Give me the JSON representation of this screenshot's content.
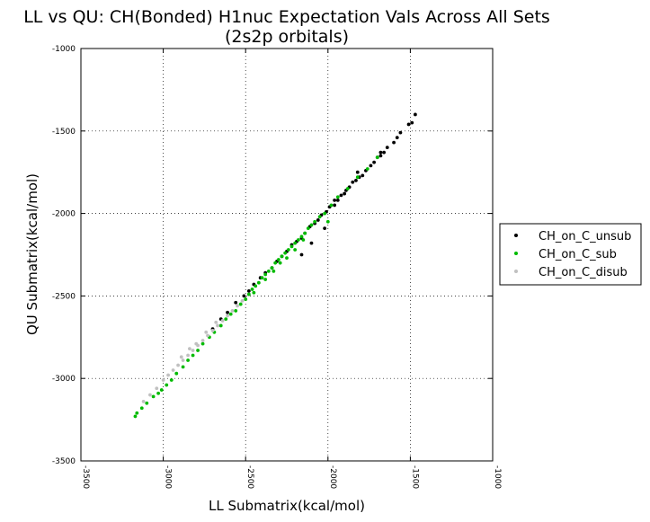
{
  "chart_data": {
    "type": "scatter",
    "title": "LL vs QU: CH(Bonded) H1nuc Expectation Vals Across All Sets",
    "subtitle": "(2s2p orbitals)",
    "xlabel": "LL Submatrix(kcal/mol)",
    "ylabel": "QU Submatrix(kcal/mol)",
    "xlim": [
      -3500,
      -1000
    ],
    "ylim": [
      -3500,
      -1000
    ],
    "x_ticks": [
      "-3500",
      "-3000",
      "-2500",
      "-2000",
      "-1500",
      "-1000"
    ],
    "y_ticks": [
      "-3500",
      "-3000",
      "-2500",
      "-2000",
      "-1500",
      "-1000"
    ],
    "grid": true,
    "legend_position": "outside-right",
    "series": [
      {
        "name": "CH_on_C_unsub",
        "color": "#000000",
        "points": [
          [
            -1470,
            -1400
          ],
          [
            -1490,
            -1450
          ],
          [
            -1510,
            -1460
          ],
          [
            -1560,
            -1510
          ],
          [
            -1580,
            -1540
          ],
          [
            -1600,
            -1570
          ],
          [
            -1640,
            -1600
          ],
          [
            -1660,
            -1630
          ],
          [
            -1680,
            -1650
          ],
          [
            -1700,
            -1660
          ],
          [
            -1720,
            -1690
          ],
          [
            -1740,
            -1710
          ],
          [
            -1770,
            -1740
          ],
          [
            -1790,
            -1770
          ],
          [
            -1810,
            -1780
          ],
          [
            -1830,
            -1800
          ],
          [
            -1850,
            -1810
          ],
          [
            -1870,
            -1840
          ],
          [
            -1890,
            -1860
          ],
          [
            -1900,
            -1880
          ],
          [
            -1920,
            -1890
          ],
          [
            -1940,
            -1920
          ],
          [
            -1960,
            -1950
          ],
          [
            -1990,
            -1960
          ],
          [
            -2010,
            -1990
          ],
          [
            -2040,
            -2010
          ],
          [
            -2060,
            -2040
          ],
          [
            -2080,
            -2060
          ],
          [
            -2110,
            -2080
          ],
          [
            -2140,
            -2120
          ],
          [
            -2160,
            -2150
          ],
          [
            -2190,
            -2170
          ],
          [
            -2220,
            -2190
          ],
          [
            -2250,
            -2230
          ],
          [
            -2280,
            -2260
          ],
          [
            -2310,
            -2290
          ],
          [
            -2340,
            -2330
          ],
          [
            -2380,
            -2360
          ],
          [
            -2410,
            -2390
          ],
          [
            -2450,
            -2430
          ],
          [
            -2480,
            -2470
          ],
          [
            -2510,
            -2500
          ],
          [
            -2560,
            -2540
          ],
          [
            -2610,
            -2600
          ],
          [
            -2650,
            -2640
          ],
          [
            -2700,
            -2700
          ],
          [
            -1680,
            -1630
          ],
          [
            -1820,
            -1750
          ],
          [
            -1960,
            -1920
          ],
          [
            -2020,
            -2090
          ],
          [
            -2100,
            -2180
          ],
          [
            -2160,
            -2250
          ]
        ]
      },
      {
        "name": "CH_on_C_sub",
        "color": "#00bb00",
        "points": [
          [
            -3170,
            -3230
          ],
          [
            -3160,
            -3210
          ],
          [
            -3130,
            -3180
          ],
          [
            -3100,
            -3150
          ],
          [
            -3060,
            -3110
          ],
          [
            -3030,
            -3090
          ],
          [
            -3010,
            -3070
          ],
          [
            -2980,
            -3040
          ],
          [
            -2950,
            -3010
          ],
          [
            -2920,
            -2970
          ],
          [
            -2880,
            -2930
          ],
          [
            -2850,
            -2890
          ],
          [
            -2820,
            -2860
          ],
          [
            -2790,
            -2830
          ],
          [
            -2760,
            -2790
          ],
          [
            -2720,
            -2750
          ],
          [
            -2690,
            -2720
          ],
          [
            -2650,
            -2680
          ],
          [
            -2620,
            -2640
          ],
          [
            -2590,
            -2610
          ],
          [
            -2560,
            -2590
          ],
          [
            -2530,
            -2550
          ],
          [
            -2500,
            -2520
          ],
          [
            -2480,
            -2490
          ],
          [
            -2460,
            -2460
          ],
          [
            -2440,
            -2440
          ],
          [
            -2420,
            -2420
          ],
          [
            -2400,
            -2390
          ],
          [
            -2380,
            -2370
          ],
          [
            -2360,
            -2350
          ],
          [
            -2340,
            -2330
          ],
          [
            -2320,
            -2300
          ],
          [
            -2300,
            -2280
          ],
          [
            -2280,
            -2260
          ],
          [
            -2260,
            -2240
          ],
          [
            -2240,
            -2220
          ],
          [
            -2220,
            -2200
          ],
          [
            -2200,
            -2180
          ],
          [
            -2180,
            -2160
          ],
          [
            -2160,
            -2140
          ],
          [
            -2140,
            -2120
          ],
          [
            -2120,
            -2090
          ],
          [
            -2100,
            -2070
          ],
          [
            -2080,
            -2050
          ],
          [
            -2050,
            -2020
          ],
          [
            -2020,
            -2000
          ],
          [
            -1980,
            -1950
          ],
          [
            -1940,
            -1900
          ],
          [
            -1880,
            -1850
          ],
          [
            -1820,
            -1780
          ],
          [
            -1760,
            -1730
          ],
          [
            -1700,
            -1660
          ],
          [
            -2450,
            -2480
          ],
          [
            -2380,
            -2400
          ],
          [
            -2330,
            -2350
          ],
          [
            -2290,
            -2300
          ],
          [
            -2250,
            -2270
          ],
          [
            -2200,
            -2220
          ],
          [
            -2150,
            -2160
          ],
          [
            -2000,
            -2050
          ]
        ]
      },
      {
        "name": "CH_on_C_disub",
        "color": "#c0c0c0",
        "points": [
          [
            -3120,
            -3140
          ],
          [
            -3080,
            -3100
          ],
          [
            -3040,
            -3060
          ],
          [
            -3000,
            -3010
          ],
          [
            -2970,
            -2980
          ],
          [
            -2940,
            -2950
          ],
          [
            -2910,
            -2920
          ],
          [
            -2880,
            -2890
          ],
          [
            -2850,
            -2860
          ],
          [
            -2820,
            -2830
          ],
          [
            -2790,
            -2800
          ],
          [
            -2760,
            -2770
          ],
          [
            -2730,
            -2740
          ],
          [
            -2700,
            -2710
          ],
          [
            -2670,
            -2680
          ],
          [
            -2640,
            -2650
          ],
          [
            -2610,
            -2620
          ],
          [
            -2580,
            -2590
          ],
          [
            -2550,
            -2560
          ],
          [
            -2520,
            -2530
          ],
          [
            -2890,
            -2870
          ],
          [
            -2840,
            -2820
          ],
          [
            -2800,
            -2790
          ],
          [
            -2740,
            -2720
          ],
          [
            -2680,
            -2660
          ]
        ]
      }
    ]
  }
}
